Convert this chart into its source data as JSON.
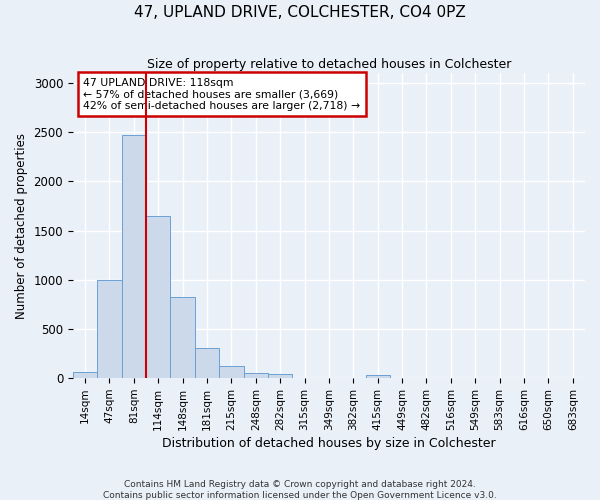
{
  "title": "47, UPLAND DRIVE, COLCHESTER, CO4 0PZ",
  "subtitle": "Size of property relative to detached houses in Colchester",
  "xlabel": "Distribution of detached houses by size in Colchester",
  "ylabel": "Number of detached properties",
  "footer_line1": "Contains HM Land Registry data © Crown copyright and database right 2024.",
  "footer_line2": "Contains public sector information licensed under the Open Government Licence v3.0.",
  "bin_labels": [
    "14sqm",
    "47sqm",
    "81sqm",
    "114sqm",
    "148sqm",
    "181sqm",
    "215sqm",
    "248sqm",
    "282sqm",
    "315sqm",
    "349sqm",
    "382sqm",
    "415sqm",
    "449sqm",
    "482sqm",
    "516sqm",
    "549sqm",
    "583sqm",
    "616sqm",
    "650sqm",
    "683sqm"
  ],
  "values": [
    60,
    1000,
    2470,
    1650,
    830,
    305,
    120,
    50,
    45,
    0,
    0,
    0,
    30,
    0,
    0,
    0,
    0,
    0,
    0,
    0,
    0
  ],
  "bar_color": "#ccd9eb",
  "bar_edge_color": "#6b9fd4",
  "annotation_line1": "47 UPLAND DRIVE: 118sqm",
  "annotation_line2": "← 57% of detached houses are smaller (3,669)",
  "annotation_line3": "42% of semi-detached houses are larger (2,718) →",
  "annotation_box_color": "#ffffff",
  "annotation_box_edge": "#cc0000",
  "vline_color": "#cc0000",
  "ylim": [
    0,
    3100
  ],
  "yticks": [
    0,
    500,
    1000,
    1500,
    2000,
    2500,
    3000
  ],
  "bg_color": "#eaf0f8",
  "grid_color": "#ffffff"
}
